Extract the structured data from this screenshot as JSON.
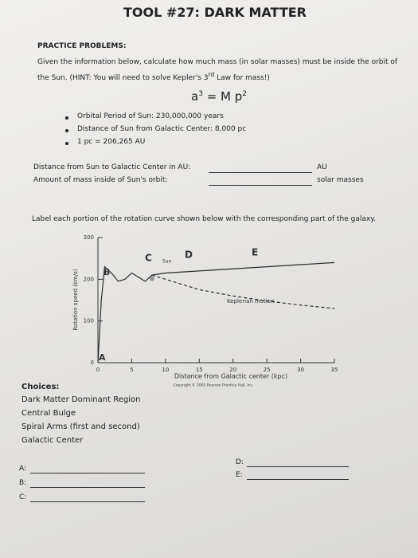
{
  "title": "TOOL #27: DARK MATTER",
  "heading": "PRACTICE PROBLEMS:",
  "intro": {
    "before": "Given the information below, calculate how much mass (in solar masses) must be inside the orbit of the Sun. (HINT: You will need to solve Kepler's 3",
    "sup": "rd",
    "after": " Law for mass!)"
  },
  "equation": {
    "a": "a",
    "a_exp": "3",
    "rest": " = M p",
    "p_exp": "2"
  },
  "bullets": [
    "Orbital Period of Sun: 230,000,000 years",
    "Distance of Sun from Galactic Center: 8,000 pc",
    "1 pc = 206,265 AU"
  ],
  "questions": [
    {
      "label": "Distance from Sun to Galactic Center in AU:",
      "unit": "AU"
    },
    {
      "label": "Amount of mass inside of Sun's orbit:",
      "unit": "solar masses"
    }
  ],
  "instruction": "Label each portion of the rotation curve shown below with the corresponding part of the galaxy.",
  "chart_data": {
    "type": "line",
    "y_label": "Rotation speed (km/s)",
    "x_label": "Distance from Galactic center (kpc)",
    "credit": "Copyright © 2005 Pearson Prentice Hall, Inc.",
    "annotations": [
      "A",
      "B",
      "C",
      "Sun",
      "D",
      "E",
      "Keplerian motion"
    ],
    "x": [
      0,
      0.5,
      1,
      2,
      3,
      4,
      5,
      6,
      7,
      8,
      10,
      15,
      20,
      25,
      30,
      35
    ],
    "series": [
      {
        "color": "#2a2a2a",
        "dashed": false,
        "values": [
          0,
          150,
          230,
          215,
          195,
          200,
          215,
          205,
          195,
          210,
          215,
          220,
          225,
          230,
          235,
          240
        ]
      },
      {
        "color": "#2a2a2a",
        "dashed": true,
        "values": [
          null,
          null,
          null,
          null,
          null,
          null,
          null,
          null,
          null,
          210,
          200,
          175,
          160,
          148,
          138,
          130
        ]
      }
    ],
    "xlim": [
      0,
      35
    ],
    "ylim": [
      0,
      300
    ],
    "xticks": [
      0,
      5,
      10,
      15,
      20,
      25,
      30,
      35
    ],
    "yticks": [
      0,
      100,
      200,
      300
    ]
  },
  "choices": {
    "heading": "Choices:",
    "items": [
      "Dark Matter Dominant Region",
      "Central Bulge",
      "Spiral Arms (first and second)",
      "Galactic Center"
    ]
  },
  "answers": [
    "A:",
    "B:",
    "C:",
    "D:",
    "E:"
  ]
}
